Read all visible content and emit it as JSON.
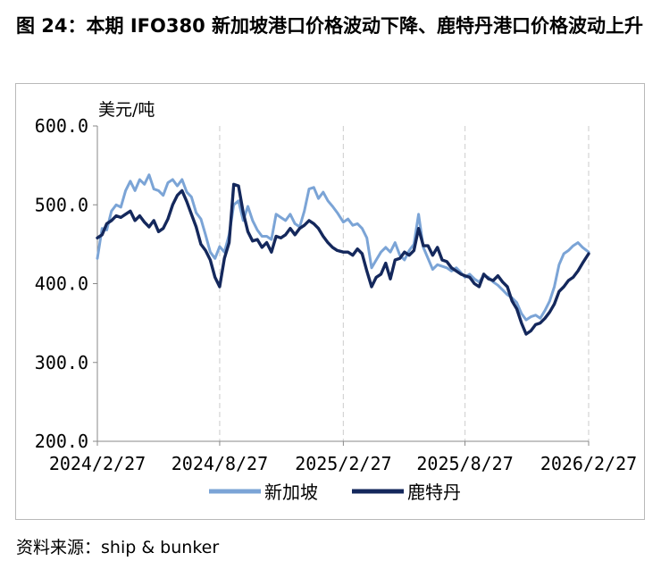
{
  "figure": {
    "title": "图 24：本期 IFO380 新加坡港口价格波动下降、鹿特丹港口价格波动上升",
    "source": "资料来源：ship & bunker"
  },
  "colors": {
    "singapore": "#7ba4d6",
    "rotterdam": "#14285c",
    "grid": "#d4d4d4",
    "axis": "#888888"
  },
  "chart_data": {
    "type": "line",
    "unit_label": "美元/吨",
    "ylim": [
      200,
      600
    ],
    "yticks": [
      {
        "value": 600,
        "label": "600.0"
      },
      {
        "value": 500,
        "label": "500.0"
      },
      {
        "value": 400,
        "label": "400.0"
      },
      {
        "value": 300,
        "label": "300.0"
      },
      {
        "value": 200,
        "label": "200.0"
      }
    ],
    "xlim": [
      "2024-02-27",
      "2026-02-27"
    ],
    "xticks": [
      {
        "date": "2024-02-27",
        "label": "2024/2/27"
      },
      {
        "date": "2024-08-27",
        "label": "2024/8/27"
      },
      {
        "date": "2025-02-27",
        "label": "2025/2/27"
      },
      {
        "date": "2025-08-27",
        "label": "2025/8/27"
      },
      {
        "date": "2026-02-27",
        "label": "2026/2/27"
      }
    ],
    "grid": "vertical dashed",
    "legend": "bottom",
    "series": [
      {
        "name": "新加坡",
        "color": "#7ba4d6",
        "points": [
          [
            "2024-02-27",
            432
          ],
          [
            "2024-03-05",
            470
          ],
          [
            "2024-03-12",
            468
          ],
          [
            "2024-03-19",
            492
          ],
          [
            "2024-03-26",
            500
          ],
          [
            "2024-04-02",
            497
          ],
          [
            "2024-04-09",
            518
          ],
          [
            "2024-04-16",
            530
          ],
          [
            "2024-04-23",
            518
          ],
          [
            "2024-04-30",
            532
          ],
          [
            "2024-05-07",
            526
          ],
          [
            "2024-05-14",
            538
          ],
          [
            "2024-05-21",
            520
          ],
          [
            "2024-05-28",
            518
          ],
          [
            "2024-06-04",
            512
          ],
          [
            "2024-06-11",
            528
          ],
          [
            "2024-06-18",
            532
          ],
          [
            "2024-06-25",
            524
          ],
          [
            "2024-07-02",
            532
          ],
          [
            "2024-07-09",
            516
          ],
          [
            "2024-07-16",
            510
          ],
          [
            "2024-07-23",
            490
          ],
          [
            "2024-07-30",
            482
          ],
          [
            "2024-08-06",
            462
          ],
          [
            "2024-08-13",
            440
          ],
          [
            "2024-08-20",
            432
          ],
          [
            "2024-08-27",
            447
          ],
          [
            "2024-09-03",
            440
          ],
          [
            "2024-09-10",
            462
          ],
          [
            "2024-09-17",
            500
          ],
          [
            "2024-09-24",
            505
          ],
          [
            "2024-10-01",
            480
          ],
          [
            "2024-10-08",
            498
          ],
          [
            "2024-10-15",
            480
          ],
          [
            "2024-10-22",
            468
          ],
          [
            "2024-10-29",
            460
          ],
          [
            "2024-11-05",
            460
          ],
          [
            "2024-11-12",
            456
          ],
          [
            "2024-11-19",
            488
          ],
          [
            "2024-11-26",
            484
          ],
          [
            "2024-12-03",
            480
          ],
          [
            "2024-12-10",
            488
          ],
          [
            "2024-12-17",
            476
          ],
          [
            "2024-12-24",
            472
          ],
          [
            "2024-12-31",
            492
          ],
          [
            "2025-01-07",
            520
          ],
          [
            "2025-01-14",
            522
          ],
          [
            "2025-01-21",
            508
          ],
          [
            "2025-01-28",
            516
          ],
          [
            "2025-02-04",
            505
          ],
          [
            "2025-02-11",
            498
          ],
          [
            "2025-02-18",
            490
          ],
          [
            "2025-02-27",
            478
          ],
          [
            "2025-03-06",
            482
          ],
          [
            "2025-03-13",
            474
          ],
          [
            "2025-03-20",
            476
          ],
          [
            "2025-03-27",
            470
          ],
          [
            "2025-04-03",
            458
          ],
          [
            "2025-04-10",
            420
          ],
          [
            "2025-04-17",
            430
          ],
          [
            "2025-04-24",
            440
          ],
          [
            "2025-05-01",
            446
          ],
          [
            "2025-05-08",
            440
          ],
          [
            "2025-05-15",
            452
          ],
          [
            "2025-05-22",
            436
          ],
          [
            "2025-05-29",
            430
          ],
          [
            "2025-06-05",
            442
          ],
          [
            "2025-06-12",
            450
          ],
          [
            "2025-06-19",
            488
          ],
          [
            "2025-06-26",
            446
          ],
          [
            "2025-07-03",
            432
          ],
          [
            "2025-07-10",
            418
          ],
          [
            "2025-07-17",
            424
          ],
          [
            "2025-07-24",
            422
          ],
          [
            "2025-07-31",
            420
          ],
          [
            "2025-08-07",
            416
          ],
          [
            "2025-08-14",
            420
          ],
          [
            "2025-08-21",
            414
          ],
          [
            "2025-08-27",
            408
          ],
          [
            "2025-09-03",
            412
          ],
          [
            "2025-09-10",
            406
          ],
          [
            "2025-09-17",
            402
          ],
          [
            "2025-09-24",
            410
          ],
          [
            "2025-10-01",
            408
          ],
          [
            "2025-10-08",
            402
          ],
          [
            "2025-10-15",
            398
          ],
          [
            "2025-10-22",
            392
          ],
          [
            "2025-10-29",
            386
          ],
          [
            "2025-11-05",
            382
          ],
          [
            "2025-11-12",
            376
          ],
          [
            "2025-11-19",
            362
          ],
          [
            "2025-11-26",
            354
          ],
          [
            "2025-12-03",
            358
          ],
          [
            "2025-12-10",
            360
          ],
          [
            "2025-12-17",
            356
          ],
          [
            "2025-12-24",
            366
          ],
          [
            "2025-12-31",
            378
          ],
          [
            "2026-01-07",
            396
          ],
          [
            "2026-01-14",
            424
          ],
          [
            "2026-01-21",
            438
          ],
          [
            "2026-01-28",
            442
          ],
          [
            "2026-02-04",
            448
          ],
          [
            "2026-02-11",
            452
          ],
          [
            "2026-02-18",
            446
          ],
          [
            "2026-02-27",
            440
          ]
        ]
      },
      {
        "name": "鹿特丹",
        "color": "#14285c",
        "points": [
          [
            "2024-02-27",
            458
          ],
          [
            "2024-03-05",
            462
          ],
          [
            "2024-03-12",
            476
          ],
          [
            "2024-03-19",
            480
          ],
          [
            "2024-03-26",
            486
          ],
          [
            "2024-04-02",
            484
          ],
          [
            "2024-04-09",
            488
          ],
          [
            "2024-04-16",
            492
          ],
          [
            "2024-04-23",
            480
          ],
          [
            "2024-04-30",
            486
          ],
          [
            "2024-05-07",
            478
          ],
          [
            "2024-05-14",
            472
          ],
          [
            "2024-05-21",
            480
          ],
          [
            "2024-05-28",
            466
          ],
          [
            "2024-06-04",
            470
          ],
          [
            "2024-06-11",
            482
          ],
          [
            "2024-06-18",
            500
          ],
          [
            "2024-06-25",
            512
          ],
          [
            "2024-07-02",
            518
          ],
          [
            "2024-07-09",
            504
          ],
          [
            "2024-07-16",
            488
          ],
          [
            "2024-07-23",
            472
          ],
          [
            "2024-07-30",
            450
          ],
          [
            "2024-08-06",
            442
          ],
          [
            "2024-08-13",
            430
          ],
          [
            "2024-08-20",
            408
          ],
          [
            "2024-08-27",
            396
          ],
          [
            "2024-09-03",
            432
          ],
          [
            "2024-09-10",
            452
          ],
          [
            "2024-09-17",
            526
          ],
          [
            "2024-09-24",
            524
          ],
          [
            "2024-10-01",
            490
          ],
          [
            "2024-10-08",
            466
          ],
          [
            "2024-10-15",
            454
          ],
          [
            "2024-10-22",
            456
          ],
          [
            "2024-10-29",
            446
          ],
          [
            "2024-11-05",
            452
          ],
          [
            "2024-11-12",
            440
          ],
          [
            "2024-11-19",
            460
          ],
          [
            "2024-11-26",
            458
          ],
          [
            "2024-12-03",
            462
          ],
          [
            "2024-12-10",
            470
          ],
          [
            "2024-12-17",
            462
          ],
          [
            "2024-12-24",
            470
          ],
          [
            "2024-12-31",
            474
          ],
          [
            "2025-01-07",
            480
          ],
          [
            "2025-01-14",
            476
          ],
          [
            "2025-01-21",
            470
          ],
          [
            "2025-01-28",
            460
          ],
          [
            "2025-02-04",
            452
          ],
          [
            "2025-02-11",
            446
          ],
          [
            "2025-02-18",
            442
          ],
          [
            "2025-02-27",
            440
          ],
          [
            "2025-03-06",
            440
          ],
          [
            "2025-03-13",
            436
          ],
          [
            "2025-03-20",
            444
          ],
          [
            "2025-03-27",
            438
          ],
          [
            "2025-04-03",
            416
          ],
          [
            "2025-04-10",
            396
          ],
          [
            "2025-04-17",
            408
          ],
          [
            "2025-04-24",
            412
          ],
          [
            "2025-05-01",
            426
          ],
          [
            "2025-05-08",
            406
          ],
          [
            "2025-05-15",
            430
          ],
          [
            "2025-05-22",
            432
          ],
          [
            "2025-05-29",
            440
          ],
          [
            "2025-06-05",
            436
          ],
          [
            "2025-06-12",
            442
          ],
          [
            "2025-06-19",
            470
          ],
          [
            "2025-06-26",
            448
          ],
          [
            "2025-07-03",
            448
          ],
          [
            "2025-07-10",
            436
          ],
          [
            "2025-07-17",
            446
          ],
          [
            "2025-07-24",
            430
          ],
          [
            "2025-07-31",
            428
          ],
          [
            "2025-08-07",
            420
          ],
          [
            "2025-08-14",
            416
          ],
          [
            "2025-08-21",
            412
          ],
          [
            "2025-08-27",
            410
          ],
          [
            "2025-09-03",
            408
          ],
          [
            "2025-09-10",
            400
          ],
          [
            "2025-09-17",
            396
          ],
          [
            "2025-09-24",
            412
          ],
          [
            "2025-10-01",
            406
          ],
          [
            "2025-10-08",
            404
          ],
          [
            "2025-10-15",
            410
          ],
          [
            "2025-10-22",
            402
          ],
          [
            "2025-10-29",
            396
          ],
          [
            "2025-11-05",
            378
          ],
          [
            "2025-11-12",
            368
          ],
          [
            "2025-11-19",
            350
          ],
          [
            "2025-11-26",
            336
          ],
          [
            "2025-12-03",
            340
          ],
          [
            "2025-12-10",
            348
          ],
          [
            "2025-12-17",
            350
          ],
          [
            "2025-12-24",
            356
          ],
          [
            "2025-12-31",
            364
          ],
          [
            "2026-01-07",
            374
          ],
          [
            "2026-01-14",
            390
          ],
          [
            "2026-01-21",
            396
          ],
          [
            "2026-01-28",
            404
          ],
          [
            "2026-02-04",
            408
          ],
          [
            "2026-02-11",
            416
          ],
          [
            "2026-02-18",
            426
          ],
          [
            "2026-02-27",
            438
          ]
        ]
      }
    ]
  }
}
